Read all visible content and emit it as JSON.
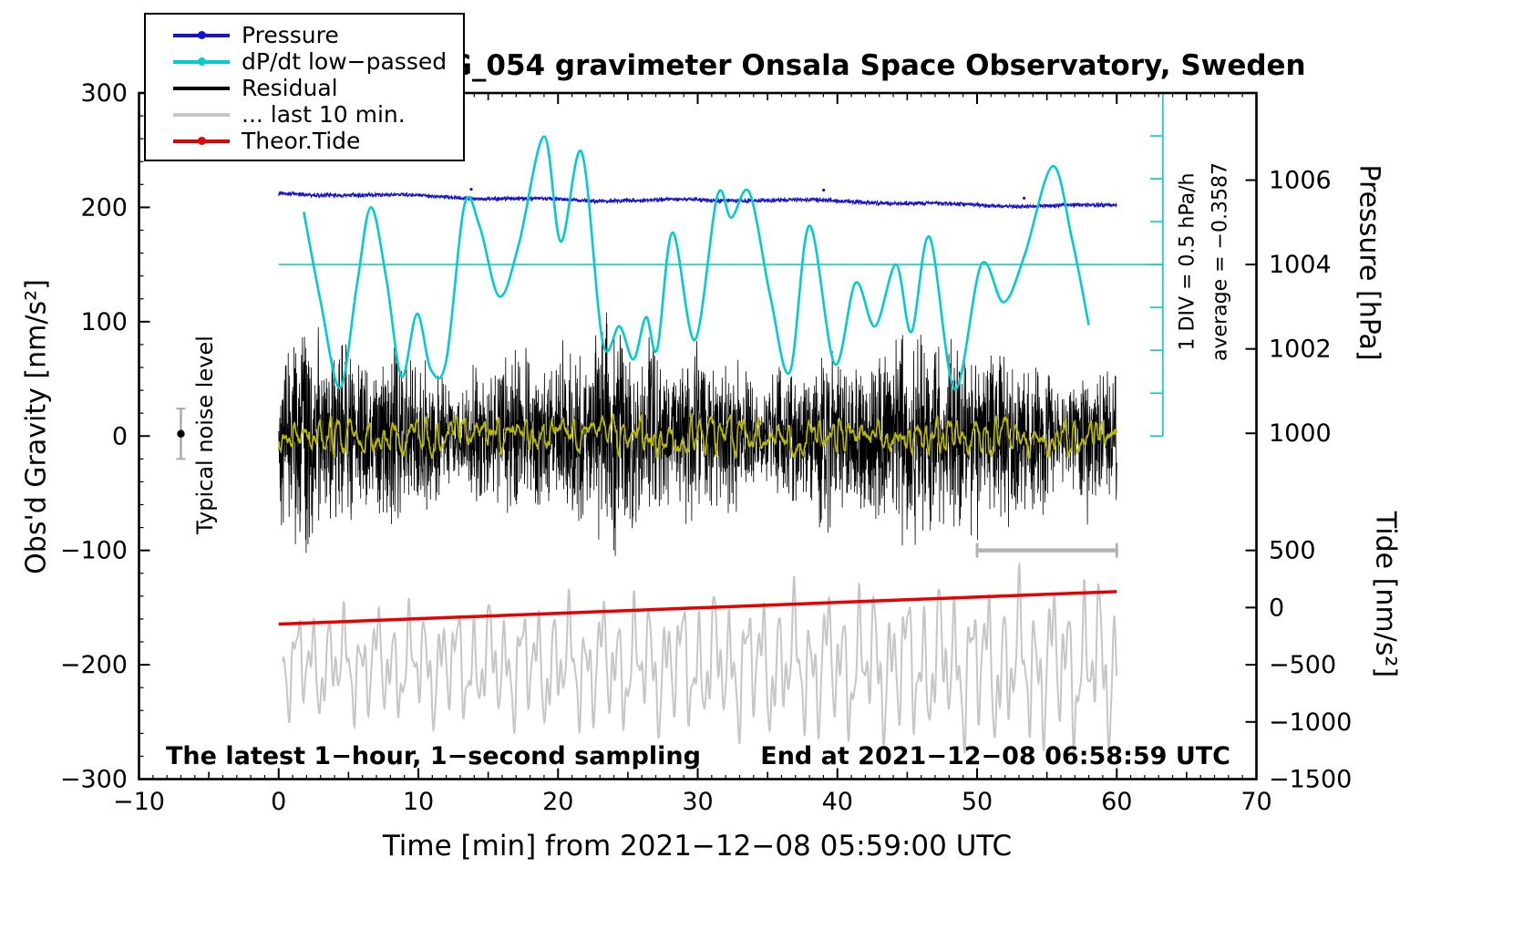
{
  "title": "SCG_054 gravimeter Onsala Space Observatory, Sweden",
  "axes": {
    "x": {
      "label": "Time [min] from 2021−12−08 05:59:00 UTC",
      "min": -10,
      "max": 70,
      "ticks": [
        {
          "v": -10,
          "label": "−10"
        },
        {
          "v": 0,
          "label": "0"
        },
        {
          "v": 10,
          "label": "10"
        },
        {
          "v": 20,
          "label": "20"
        },
        {
          "v": 30,
          "label": "30"
        },
        {
          "v": 40,
          "label": "40"
        },
        {
          "v": 50,
          "label": "50"
        },
        {
          "v": 60,
          "label": "60"
        },
        {
          "v": 70,
          "label": "70"
        }
      ]
    },
    "y_left": {
      "label": "Obs'd Gravity [nm/s²]",
      "min": -300,
      "max": 300,
      "ticks": [
        {
          "v": 300,
          "label": "300"
        },
        {
          "v": 200,
          "label": "200"
        },
        {
          "v": 100,
          "label": "100"
        },
        {
          "v": 0,
          "label": "0"
        },
        {
          "v": -100,
          "label": "−100"
        },
        {
          "v": -200,
          "label": "−200"
        },
        {
          "v": -300,
          "label": "−300"
        }
      ]
    },
    "y_right_pressure": {
      "label": "Pressure [hPa]",
      "gravity_at_1004": 150,
      "gravity_per_hPa": 36.9,
      "ticks": [
        {
          "hPa": 1006,
          "label": "1006"
        },
        {
          "hPa": 1004,
          "label": "1004"
        },
        {
          "hPa": 1002,
          "label": "1002"
        },
        {
          "hPa": 1000,
          "label": "1000"
        }
      ]
    },
    "y_right_tide": {
      "label": "Tide [nm/s²]",
      "tide_per_gravity": 10,
      "gravity_offset": -150,
      "ticks": [
        {
          "tide": 500,
          "label": "500"
        },
        {
          "tide": 0,
          "label": "0"
        },
        {
          "tide": -500,
          "label": "−500"
        },
        {
          "tide": -1000,
          "label": "−1000"
        },
        {
          "tide": -1500,
          "label": "−1500"
        }
      ]
    }
  },
  "legend": {
    "items": [
      {
        "label": "Pressure",
        "color": "#1414d2",
        "marker": true
      },
      {
        "label": "dP/dt low−passed",
        "color": "#00cccc",
        "marker": true
      },
      {
        "label": "Residual",
        "color": "#000000",
        "marker": false
      },
      {
        "label": "... last 10 min.",
        "color": "#c6c6c6",
        "marker": false
      },
      {
        "label": "Theor.Tide",
        "color": "#e60000",
        "marker": true
      }
    ]
  },
  "annotations": {
    "sampling_note": "The latest 1−hour, 1−second sampling",
    "end_time": "End at 2021−12−08 06:58:59 UTC",
    "div_scale": "1 DIV = 0.5 hPa/h",
    "average": "average = −0.3587",
    "noise_level": "Typical noise level"
  },
  "markers": {
    "noise_marker": {
      "x_min": -7,
      "gravity": 2,
      "error": 22
    },
    "scale_bar": {
      "x_start": 50,
      "x_end": 60,
      "gravity": -100,
      "color": "#b3b3b3"
    },
    "dpdt_zero_line": {
      "gravity": 150,
      "x_start_min": 0,
      "x_end_min": 63.3
    },
    "dpdt_scale_bar": {
      "x_min": 63.3,
      "gravity_top": 300,
      "gravity_bottom": 0,
      "divisions": 8
    }
  },
  "chart_data": {
    "type": "line",
    "x_unit": "min",
    "x_data_range": [
      0,
      60
    ],
    "gravity_range": [
      -300,
      300
    ],
    "tide_range": [
      -1500,
      500
    ],
    "pressure_visible_ticks": [
      1000,
      1002,
      1004,
      1006
    ],
    "series": [
      {
        "name": "Pressure",
        "color": "#1414d2",
        "axis": "pressure",
        "unit": "hPa",
        "start_hPa": 1005.65,
        "end_hPa": 1005.4,
        "noise_sd_hPa": 0.045,
        "gravity_equiv_start": 210.8,
        "gravity_equiv_end": 201.5
      },
      {
        "name": "dP/dt low-passed",
        "color": "#00cccc",
        "axis": "gravity",
        "unit": "hPa/h, 0.5 per DIV",
        "zero_reference_gravity": 150,
        "average_hPa_per_h": -0.3587,
        "waypoints_gravity": [
          [
            1.8,
            196
          ],
          [
            3.0,
            118
          ],
          [
            4.4,
            42
          ],
          [
            5.6,
            132
          ],
          [
            6.6,
            200
          ],
          [
            7.7,
            138
          ],
          [
            8.8,
            52
          ],
          [
            9.9,
            107
          ],
          [
            10.9,
            58
          ],
          [
            12.0,
            66
          ],
          [
            13.3,
            202
          ],
          [
            14.4,
            183
          ],
          [
            15.8,
            122
          ],
          [
            17.2,
            168
          ],
          [
            19.0,
            262
          ],
          [
            20.2,
            170
          ],
          [
            21.7,
            248
          ],
          [
            23.2,
            82
          ],
          [
            24.4,
            96
          ],
          [
            25.4,
            67
          ],
          [
            26.3,
            104
          ],
          [
            27.1,
            76
          ],
          [
            28.2,
            178
          ],
          [
            29.8,
            84
          ],
          [
            31.4,
            210
          ],
          [
            32.4,
            191
          ],
          [
            33.7,
            213
          ],
          [
            35.2,
            122
          ],
          [
            36.6,
            56
          ],
          [
            38.0,
            184
          ],
          [
            39.8,
            63
          ],
          [
            41.3,
            134
          ],
          [
            42.7,
            96
          ],
          [
            44.2,
            150
          ],
          [
            45.3,
            91
          ],
          [
            46.6,
            174
          ],
          [
            48.4,
            41
          ],
          [
            50.3,
            150
          ],
          [
            51.9,
            117
          ],
          [
            53.4,
            158
          ],
          [
            55.4,
            236
          ],
          [
            56.8,
            172
          ],
          [
            58.0,
            97
          ]
        ]
      },
      {
        "name": "Residual",
        "color": "#000000",
        "axis": "gravity",
        "mean": 0,
        "typical_amplitude": 95,
        "samples_per_min": 60
      },
      {
        "name": "Residual low-passed",
        "color": "#b9b900",
        "axis": "gravity",
        "mean": 0,
        "typical_amplitude": 14
      },
      {
        "name": "... last 10 min.",
        "color": "#c6c6c6",
        "axis": "gravity",
        "offset_gravity": -200,
        "typical_amplitude": 62
      },
      {
        "name": "Theor.Tide",
        "color": "#e60000",
        "axis": "tide",
        "start_tide": -145,
        "end_tide": 140
      }
    ]
  }
}
